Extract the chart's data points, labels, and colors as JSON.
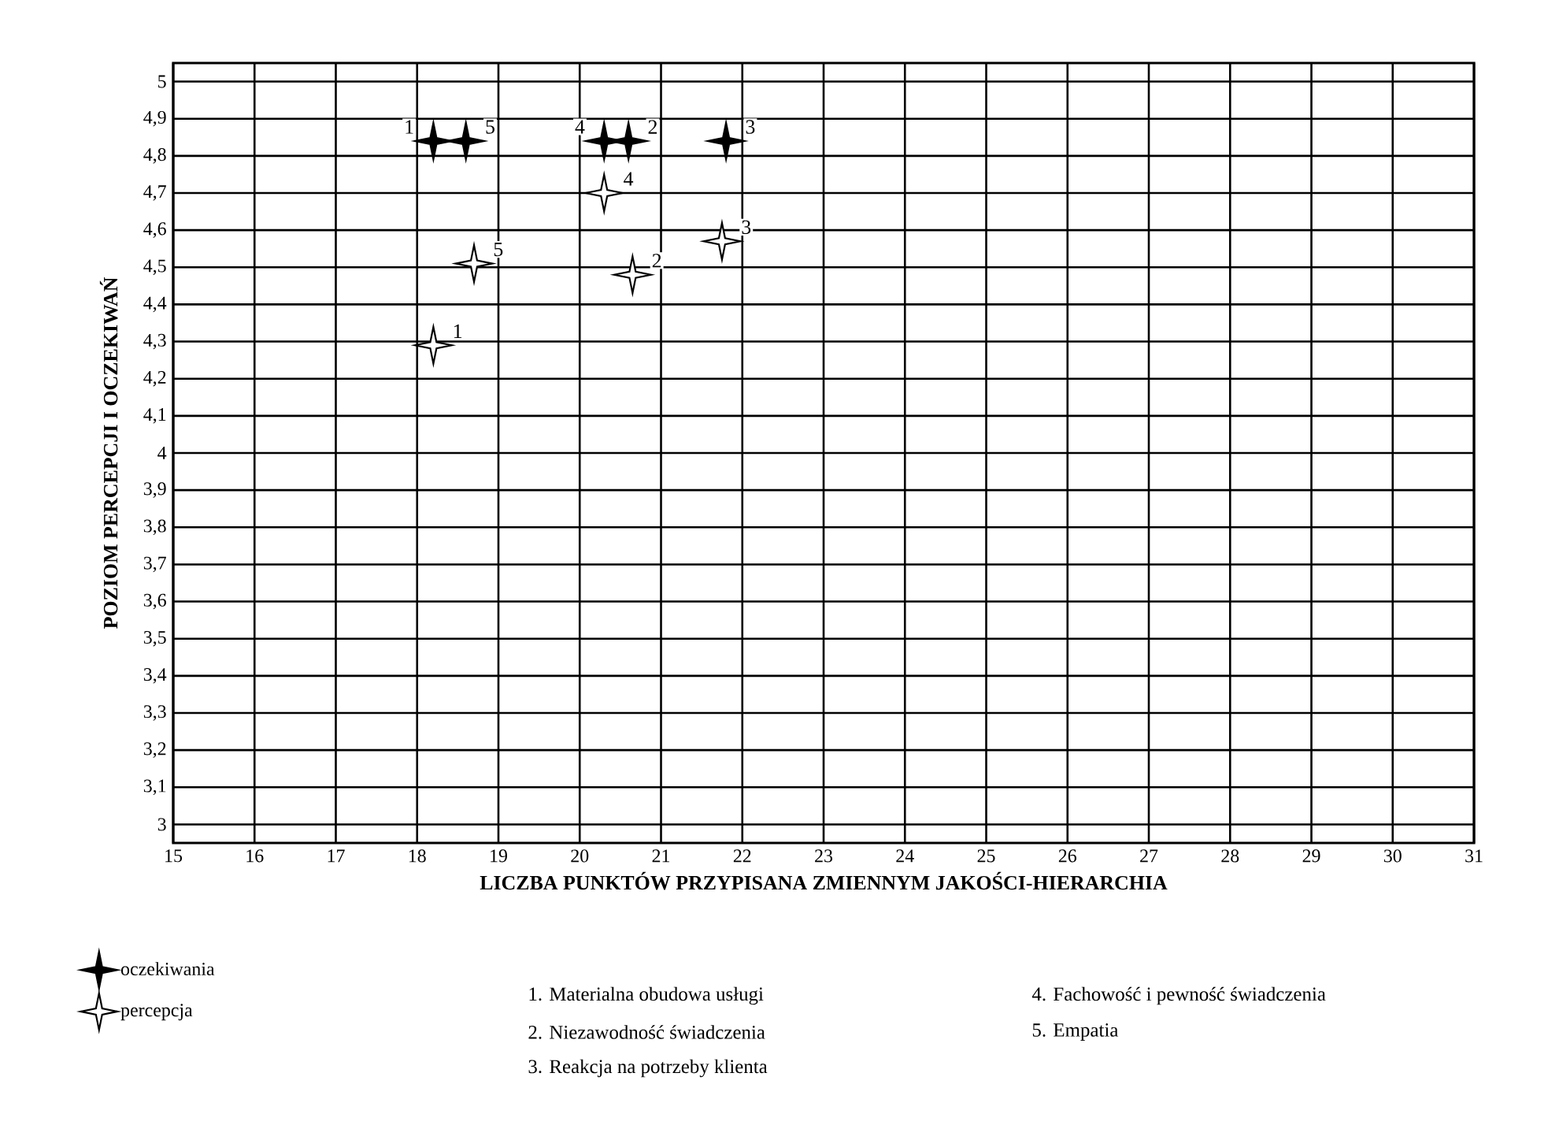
{
  "chart_data": {
    "type": "scatter",
    "xlabel": "LICZBA PUNKTÓW PRZYPISANA ZMIENNYM  JAKOŚCI-HIERARCHIA",
    "ylabel": "POZIOM PERCEPCJI I OCZEKIWAŃ",
    "xlim": [
      15,
      31
    ],
    "ylim": [
      2.95,
      5.05
    ],
    "xticks": [
      15,
      16,
      17,
      18,
      19,
      20,
      21,
      22,
      23,
      24,
      25,
      26,
      27,
      28,
      29,
      30,
      31
    ],
    "yticks": [
      3,
      {
        "value": 3.1,
        "label": "3,1"
      },
      {
        "value": 3.2,
        "label": "3,2"
      },
      {
        "value": 3.3,
        "label": "3,3"
      },
      {
        "value": 3.4,
        "label": "3,4"
      },
      {
        "value": 3.5,
        "label": "3,5"
      },
      {
        "value": 3.6,
        "label": "3,6"
      },
      {
        "value": 3.7,
        "label": "3,7"
      },
      {
        "value": 3.8,
        "label": "3,8"
      },
      {
        "value": 3.9,
        "label": "3,9"
      },
      4,
      {
        "value": 4.1,
        "label": "4,1"
      },
      {
        "value": 4.2,
        "label": "4,2"
      },
      {
        "value": 4.3,
        "label": "4,3"
      },
      {
        "value": 4.4,
        "label": "4,4"
      },
      {
        "value": 4.5,
        "label": "4,5"
      },
      {
        "value": 4.6,
        "label": "4,6"
      },
      {
        "value": 4.7,
        "label": "4,7"
      },
      {
        "value": 4.8,
        "label": "4,8"
      },
      {
        "value": 4.9,
        "label": "4,9"
      },
      5
    ],
    "grid": true,
    "marker": "star",
    "legend": "bottom left",
    "annotations": [
      {
        "text": "1",
        "x": 18.2,
        "y": 4.84
      },
      {
        "text": "2",
        "x": 20.6,
        "y": 4.84
      },
      {
        "text": "3",
        "x": 21.8,
        "y": 4.84
      },
      {
        "text": "4",
        "x": 20.3,
        "y": 4.84
      },
      {
        "text": "5",
        "x": 18.6,
        "y": 4.84
      },
      {
        "text": "1",
        "x": 18.2,
        "y": 4.29
      },
      {
        "text": "2",
        "x": 20.65,
        "y": 4.48
      },
      {
        "text": "3",
        "x": 21.75,
        "y": 4.57
      },
      {
        "text": "4",
        "x": 20.3,
        "y": 4.7
      },
      {
        "text": "5",
        "x": 18.7,
        "y": 4.51
      },
      "1. Materialna obudowa usługi",
      "2. Niezawodność świadczenia",
      "3. Reakcja na potrzeby klienta",
      "4. Fachowość i pewność świadczenia",
      "5. Empatia"
    ],
    "series": [
      {
        "name": "oczekiwania",
        "color": "#000000",
        "x": [
          18.2,
          20.6,
          21.8,
          20.3,
          18.6
        ],
        "values": [
          4.84,
          4.84,
          4.84,
          4.84,
          4.84
        ]
      },
      {
        "name": "percepcja",
        "color": "#ffffff",
        "x": [
          18.2,
          20.65,
          21.75,
          20.3,
          18.7
        ],
        "values": [
          4.29,
          4.48,
          4.57,
          4.7,
          4.51
        ]
      }
    ]
  }
}
